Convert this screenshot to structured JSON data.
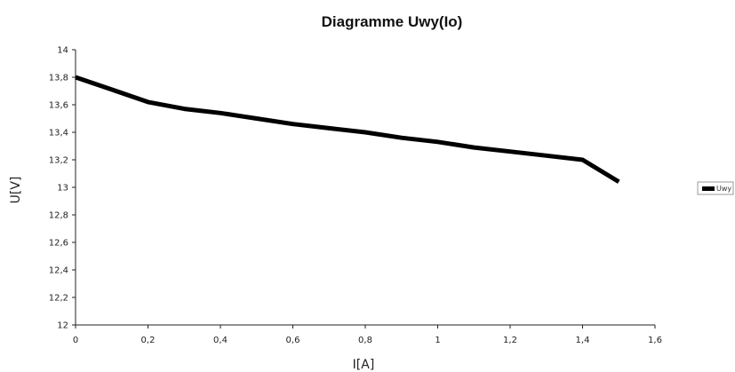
{
  "chart_data": {
    "type": "line",
    "title": "Diagramme Uwy(Io)",
    "xlabel": "I[A]",
    "ylabel": "U[V]",
    "xlim": [
      0,
      1.6
    ],
    "ylim": [
      12,
      14
    ],
    "x_ticks": [
      "0",
      "0,2",
      "0,4",
      "0,6",
      "0,8",
      "1",
      "1,2",
      "1,4",
      "1,6"
    ],
    "y_ticks": [
      "12",
      "12,2",
      "12,4",
      "12,6",
      "12,8",
      "13",
      "13,2",
      "13,4",
      "13,6",
      "13,8",
      "14"
    ],
    "grid": false,
    "legend_position": "right",
    "series": [
      {
        "name": "Uwy",
        "color": "#000000",
        "x": [
          0,
          0.1,
          0.2,
          0.3,
          0.4,
          0.5,
          0.6,
          0.7,
          0.8,
          0.9,
          1.0,
          1.1,
          1.2,
          1.3,
          1.4,
          1.5
        ],
        "y": [
          13.8,
          13.71,
          13.62,
          13.57,
          13.54,
          13.5,
          13.46,
          13.43,
          13.4,
          13.36,
          13.33,
          13.29,
          13.26,
          13.23,
          13.2,
          13.04
        ]
      }
    ]
  }
}
